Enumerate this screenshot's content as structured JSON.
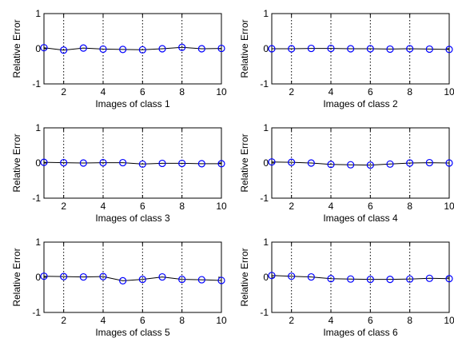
{
  "chart_data": [
    {
      "type": "scatter",
      "title": "",
      "xlabel": "Images of class 1",
      "ylabel": "Relative Error",
      "xlim": [
        1,
        10
      ],
      "ylim": [
        -1,
        1
      ],
      "xticks": [
        "2",
        "4",
        "6",
        "8",
        "10"
      ],
      "yticks": [
        "-1",
        "0",
        "1"
      ],
      "grid": "vertical dotted at x ticks",
      "series": [
        {
          "x": [
            1,
            2,
            3,
            4,
            5,
            6,
            7,
            8,
            9,
            10
          ],
          "y": [
            0.03,
            -0.04,
            0.02,
            -0.01,
            -0.02,
            -0.03,
            0.0,
            0.04,
            0.0,
            0.01
          ],
          "marker": "circle",
          "color": "#0000ff"
        }
      ]
    },
    {
      "type": "scatter",
      "title": "",
      "xlabel": "Images of class 2",
      "ylabel": "Relative Error",
      "xlim": [
        1,
        10
      ],
      "ylim": [
        -1,
        1
      ],
      "xticks": [
        "2",
        "4",
        "6",
        "8",
        "10"
      ],
      "yticks": [
        "-1",
        "0",
        "1"
      ],
      "grid": "vertical dotted at x ticks",
      "series": [
        {
          "x": [
            1,
            2,
            3,
            4,
            5,
            6,
            7,
            8,
            9,
            10
          ],
          "y": [
            0.0,
            0.0,
            0.01,
            0.01,
            0.0,
            0.0,
            -0.01,
            0.0,
            -0.01,
            -0.02
          ],
          "marker": "circle",
          "color": "#0000ff"
        }
      ]
    },
    {
      "type": "scatter",
      "title": "",
      "xlabel": "Images of class 3",
      "ylabel": "Relative Error",
      "xlim": [
        1,
        10
      ],
      "ylim": [
        -1,
        1
      ],
      "xticks": [
        "2",
        "4",
        "6",
        "8",
        "10"
      ],
      "yticks": [
        "-1",
        "0",
        "1"
      ],
      "grid": "vertical dotted at x ticks",
      "series": [
        {
          "x": [
            1,
            2,
            3,
            4,
            5,
            6,
            7,
            8,
            9,
            10
          ],
          "y": [
            0.02,
            0.01,
            0.0,
            0.01,
            0.01,
            -0.03,
            -0.01,
            -0.01,
            -0.02,
            -0.02
          ],
          "marker": "circle",
          "color": "#0000ff"
        }
      ]
    },
    {
      "type": "scatter",
      "title": "",
      "xlabel": "Images of class 4",
      "ylabel": "Relative Error",
      "xlim": [
        1,
        10
      ],
      "ylim": [
        -1,
        1
      ],
      "xticks": [
        "2",
        "4",
        "6",
        "8",
        "10"
      ],
      "yticks": [
        "-1",
        "0",
        "1"
      ],
      "grid": "vertical dotted at x ticks",
      "series": [
        {
          "x": [
            1,
            2,
            3,
            4,
            5,
            6,
            7,
            8,
            9,
            10
          ],
          "y": [
            0.03,
            0.02,
            0.0,
            -0.04,
            -0.05,
            -0.06,
            -0.03,
            0.0,
            0.01,
            0.0
          ],
          "marker": "circle",
          "color": "#0000ff"
        }
      ]
    },
    {
      "type": "scatter",
      "title": "",
      "xlabel": "Images of class 5",
      "ylabel": "Relative Error",
      "xlim": [
        1,
        10
      ],
      "ylim": [
        -1,
        1
      ],
      "xticks": [
        "2",
        "4",
        "6",
        "8",
        "10"
      ],
      "yticks": [
        "-1",
        "0",
        "1"
      ],
      "grid": "vertical dotted at x ticks",
      "series": [
        {
          "x": [
            1,
            2,
            3,
            4,
            5,
            6,
            7,
            8,
            9,
            10
          ],
          "y": [
            0.03,
            0.02,
            0.01,
            0.02,
            -0.1,
            -0.06,
            0.01,
            -0.06,
            -0.07,
            -0.09
          ],
          "marker": "circle",
          "color": "#0000ff"
        }
      ]
    },
    {
      "type": "scatter",
      "title": "",
      "xlabel": "Images of class 6",
      "ylabel": "Relative Error",
      "xlim": [
        1,
        10
      ],
      "ylim": [
        -1,
        1
      ],
      "xticks": [
        "2",
        "4",
        "6",
        "8",
        "10"
      ],
      "yticks": [
        "-1",
        "0",
        "1"
      ],
      "grid": "vertical dotted at x ticks",
      "series": [
        {
          "x": [
            1,
            2,
            3,
            4,
            5,
            6,
            7,
            8,
            9,
            10
          ],
          "y": [
            0.05,
            0.03,
            0.01,
            -0.04,
            -0.05,
            -0.06,
            -0.06,
            -0.05,
            -0.03,
            -0.04
          ],
          "marker": "circle",
          "color": "#0000ff"
        }
      ]
    }
  ]
}
